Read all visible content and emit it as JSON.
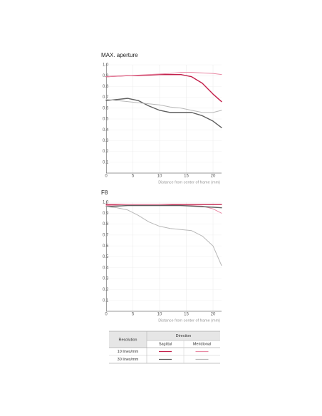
{
  "chart_data": [
    {
      "type": "line",
      "title": "MAX. aperture",
      "xlabel": "Distance from center of frame (mm)",
      "x": [
        0,
        2,
        4,
        6,
        8,
        10,
        12,
        14,
        16,
        18,
        20,
        21.6
      ],
      "series": [
        {
          "color": "#c3204b",
          "values": [
            0.89,
            0.895,
            0.9,
            0.9,
            0.905,
            0.91,
            0.91,
            0.91,
            0.89,
            0.83,
            0.73,
            0.66
          ]
        },
        {
          "color": "#e98aa5",
          "values": [
            0.89,
            0.895,
            0.9,
            0.905,
            0.91,
            0.915,
            0.92,
            0.93,
            0.93,
            0.925,
            0.92,
            0.91
          ]
        },
        {
          "color": "#5e5e5e",
          "values": [
            0.67,
            0.68,
            0.69,
            0.67,
            0.62,
            0.58,
            0.56,
            0.56,
            0.56,
            0.53,
            0.48,
            0.42
          ]
        },
        {
          "color": "#b8b8b8",
          "values": [
            0.68,
            0.67,
            0.66,
            0.65,
            0.64,
            0.63,
            0.61,
            0.6,
            0.58,
            0.56,
            0.56,
            0.58
          ]
        }
      ],
      "xlim": [
        0,
        21.6
      ],
      "ylim": [
        0,
        1
      ],
      "xticks": [
        0,
        5,
        10,
        15,
        20
      ],
      "yticks": [
        0.1,
        0.2,
        0.3,
        0.4,
        0.5,
        0.6,
        0.7,
        0.8,
        0.9,
        {
          "value": 1,
          "label": "1.0"
        }
      ],
      "grid": true
    },
    {
      "type": "line",
      "title": "F8",
      "xlabel": "Distance from center of frame (mm)",
      "x": [
        0,
        2,
        4,
        6,
        8,
        10,
        12,
        14,
        16,
        18,
        20,
        21.6
      ],
      "series": [
        {
          "color": "#c3204b",
          "values": [
            0.98,
            0.98,
            0.98,
            0.98,
            0.98,
            0.98,
            0.98,
            0.98,
            0.98,
            0.98,
            0.98,
            0.98
          ]
        },
        {
          "color": "#e98aa5",
          "values": [
            0.97,
            0.975,
            0.98,
            0.98,
            0.98,
            0.98,
            0.975,
            0.97,
            0.97,
            0.965,
            0.94,
            0.9
          ]
        },
        {
          "color": "#5e5e5e",
          "values": [
            0.96,
            0.965,
            0.97,
            0.97,
            0.97,
            0.97,
            0.97,
            0.97,
            0.965,
            0.96,
            0.955,
            0.95
          ]
        },
        {
          "color": "#b8b8b8",
          "values": [
            0.96,
            0.95,
            0.93,
            0.88,
            0.82,
            0.78,
            0.76,
            0.75,
            0.74,
            0.69,
            0.6,
            0.42
          ]
        }
      ],
      "xlim": [
        0,
        21.6
      ],
      "ylim": [
        0,
        1
      ],
      "xticks": [
        0,
        5,
        10,
        15,
        20
      ],
      "yticks": [
        0.1,
        0.2,
        0.3,
        0.4,
        0.5,
        0.6,
        0.7,
        0.8,
        0.9,
        {
          "value": 1,
          "label": "1.0"
        }
      ],
      "grid": true
    }
  ],
  "legend_table": {
    "resolution_header": "Resolution",
    "direction_header": "Direction",
    "directions": [
      "Sagittal",
      "Meridional"
    ],
    "rows": [
      "10 lines/mm",
      "30 lines/mm"
    ]
  }
}
